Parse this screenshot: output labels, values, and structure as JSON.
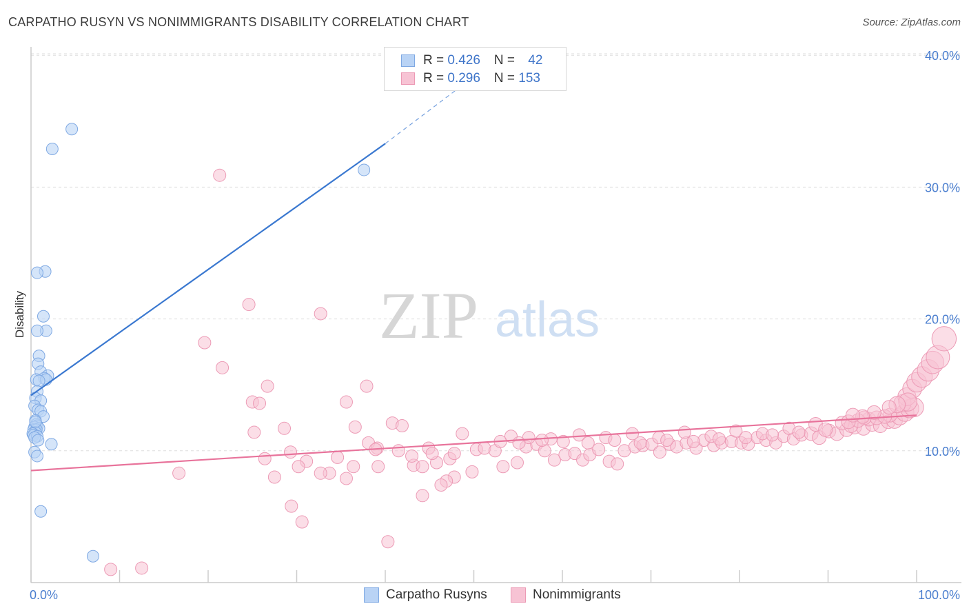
{
  "title": "CARPATHO RUSYN VS NONIMMIGRANTS DISABILITY CORRELATION CHART",
  "source": "Source: ZipAtlas.com",
  "watermark": {
    "zip": "ZIP",
    "atlas": "atlas"
  },
  "legend": {
    "rows": [
      {
        "r_label": "R = ",
        "r_value": "0.426",
        "n_label": "N = ",
        "n_value": "42"
      },
      {
        "r_label": "R = ",
        "r_value": "0.296",
        "n_label": "N = ",
        "n_value": "153"
      }
    ]
  },
  "bottom_legend": [
    "Carpatho Rusyns",
    "Nonimmigrants"
  ],
  "colors": {
    "blue_fill": "#b9d3f5",
    "blue_stroke": "#7fa9e3",
    "blue_line": "#3a78d0",
    "pink_fill": "#f7c3d4",
    "pink_stroke": "#ec9ab5",
    "pink_line": "#e8739b",
    "axis_text": "#4a7ecf",
    "grid": "#dddddd"
  },
  "chart_data": {
    "type": "scatter",
    "title": "CARPATHO RUSYN VS NONIMMIGRANTS DISABILITY CORRELATION CHART",
    "xlabel": "",
    "ylabel": "Disability",
    "xlim": [
      0,
      100
    ],
    "ylim": [
      0,
      40.5
    ],
    "x_ticks": [
      "0.0%",
      "100.0%"
    ],
    "y_ticks": [
      {
        "value": 10,
        "label": "10.0%"
      },
      {
        "value": 20,
        "label": "20.0%"
      },
      {
        "value": 30,
        "label": "30.0%"
      },
      {
        "value": 40,
        "label": "40.0%"
      }
    ],
    "grid": true,
    "legend_position": "top-center",
    "series": [
      {
        "name": "Carpatho Rusyns",
        "color": "#b9d3f5",
        "R": 0.426,
        "N": 42,
        "trend": {
          "x": [
            0,
            40
          ],
          "y": [
            14.2,
            33.3
          ],
          "dashed_to": [
            52,
            39.4
          ]
        },
        "points": [
          [
            4.6,
            34.4
          ],
          [
            2.4,
            32.9
          ],
          [
            37.6,
            31.3
          ],
          [
            1.6,
            23.6
          ],
          [
            0.7,
            23.5
          ],
          [
            1.4,
            20.2
          ],
          [
            1.7,
            19.1
          ],
          [
            0.7,
            19.1
          ],
          [
            0.9,
            17.2
          ],
          [
            0.8,
            16.6
          ],
          [
            1.1,
            16.0
          ],
          [
            1.9,
            15.7
          ],
          [
            1.5,
            15.5
          ],
          [
            0.6,
            15.4
          ],
          [
            1.7,
            15.4
          ],
          [
            0.9,
            15.3
          ],
          [
            0.7,
            14.5
          ],
          [
            0.5,
            14.0
          ],
          [
            1.1,
            13.8
          ],
          [
            0.4,
            13.4
          ],
          [
            0.8,
            13.1
          ],
          [
            1.1,
            13.0
          ],
          [
            1.4,
            12.6
          ],
          [
            0.5,
            12.3
          ],
          [
            0.6,
            12.0
          ],
          [
            0.7,
            11.9
          ],
          [
            0.4,
            11.8
          ],
          [
            0.9,
            11.7
          ],
          [
            0.3,
            11.6
          ],
          [
            0.6,
            11.6
          ],
          [
            0.5,
            11.4
          ],
          [
            0.2,
            11.3
          ],
          [
            0.3,
            11.2
          ],
          [
            0.7,
            11.1
          ],
          [
            0.4,
            11.0
          ],
          [
            0.8,
            10.8
          ],
          [
            2.3,
            10.5
          ],
          [
            0.4,
            9.9
          ],
          [
            0.7,
            9.6
          ],
          [
            1.1,
            5.4
          ],
          [
            7.0,
            2.0
          ],
          [
            0.5,
            12.2
          ]
        ]
      },
      {
        "name": "Nonimmigrants",
        "color": "#f7c3d4",
        "R": 0.296,
        "N": 153,
        "trend": {
          "x": [
            0,
            100
          ],
          "y": [
            8.5,
            12.7
          ]
        },
        "points": [
          [
            21.3,
            30.9
          ],
          [
            24.6,
            21.1
          ],
          [
            32.7,
            20.4
          ],
          [
            19.6,
            18.2
          ],
          [
            21.6,
            16.3
          ],
          [
            26.7,
            14.9
          ],
          [
            37.9,
            14.9
          ],
          [
            25.0,
            13.7
          ],
          [
            25.8,
            13.6
          ],
          [
            35.6,
            13.7
          ],
          [
            40.8,
            12.1
          ],
          [
            41.9,
            11.9
          ],
          [
            28.6,
            11.7
          ],
          [
            36.6,
            11.8
          ],
          [
            25.2,
            11.4
          ],
          [
            48.7,
            11.3
          ],
          [
            38.1,
            10.6
          ],
          [
            39.1,
            10.2
          ],
          [
            41.5,
            10.0
          ],
          [
            44.9,
            10.2
          ],
          [
            29.3,
            9.9
          ],
          [
            31.1,
            9.2
          ],
          [
            26.4,
            9.4
          ],
          [
            34.6,
            9.5
          ],
          [
            33.7,
            8.3
          ],
          [
            32.7,
            8.3
          ],
          [
            30.2,
            8.8
          ],
          [
            36.4,
            8.8
          ],
          [
            39.2,
            8.8
          ],
          [
            43.2,
            8.9
          ],
          [
            44.2,
            8.8
          ],
          [
            45.8,
            9.1
          ],
          [
            47.3,
            9.4
          ],
          [
            49.8,
            8.4
          ],
          [
            47.8,
            8.0
          ],
          [
            46.9,
            7.7
          ],
          [
            46.3,
            7.4
          ],
          [
            44.2,
            6.6
          ],
          [
            35.6,
            7.9
          ],
          [
            27.5,
            8.0
          ],
          [
            16.7,
            8.3
          ],
          [
            29.4,
            5.8
          ],
          [
            30.6,
            4.6
          ],
          [
            40.3,
            3.1
          ],
          [
            9.0,
            1.0
          ],
          [
            12.5,
            1.1
          ],
          [
            38.9,
            10.1
          ],
          [
            43.0,
            9.6
          ],
          [
            45.3,
            9.8
          ],
          [
            47.8,
            9.8
          ],
          [
            50.3,
            10.1
          ],
          [
            51.2,
            10.2
          ],
          [
            52.4,
            10.0
          ],
          [
            53.3,
            8.8
          ],
          [
            54.9,
            9.1
          ],
          [
            55.9,
            10.3
          ],
          [
            57.1,
            10.5
          ],
          [
            58.0,
            10.0
          ],
          [
            59.1,
            9.3
          ],
          [
            60.3,
            9.7
          ],
          [
            61.4,
            9.8
          ],
          [
            62.3,
            9.3
          ],
          [
            63.1,
            9.7
          ],
          [
            64.1,
            10.1
          ],
          [
            65.3,
            9.2
          ],
          [
            66.2,
            9.0
          ],
          [
            67.0,
            10.0
          ],
          [
            68.2,
            10.3
          ],
          [
            69.1,
            10.4
          ],
          [
            70.1,
            10.5
          ],
          [
            71.0,
            9.9
          ],
          [
            72.1,
            10.5
          ],
          [
            72.9,
            10.3
          ],
          [
            74.0,
            10.6
          ],
          [
            75.1,
            10.2
          ],
          [
            76.0,
            10.8
          ],
          [
            77.1,
            10.4
          ],
          [
            78.0,
            10.6
          ],
          [
            79.1,
            10.7
          ],
          [
            80.2,
            10.6
          ],
          [
            81.0,
            10.5
          ],
          [
            82.0,
            11.0
          ],
          [
            83.0,
            10.8
          ],
          [
            84.1,
            10.6
          ],
          [
            85.0,
            11.1
          ],
          [
            86.1,
            10.9
          ],
          [
            87.0,
            11.2
          ],
          [
            88.1,
            11.3
          ],
          [
            89.0,
            11.0
          ],
          [
            90.1,
            11.5
          ],
          [
            91.0,
            11.3
          ],
          [
            92.1,
            11.6
          ],
          [
            93.0,
            11.8
          ],
          [
            94.0,
            11.7
          ],
          [
            95.0,
            12.0
          ],
          [
            95.9,
            11.9
          ],
          [
            96.8,
            12.2
          ],
          [
            97.5,
            12.3
          ],
          [
            98.1,
            12.6
          ],
          [
            98.7,
            12.9
          ],
          [
            99.2,
            13.2
          ],
          [
            99.7,
            13.3
          ],
          [
            54.2,
            11.1
          ],
          [
            56.2,
            11.0
          ],
          [
            58.7,
            10.9
          ],
          [
            61.9,
            11.2
          ],
          [
            64.9,
            11.0
          ],
          [
            67.9,
            11.3
          ],
          [
            70.9,
            11.0
          ],
          [
            73.8,
            11.4
          ],
          [
            76.8,
            11.1
          ],
          [
            79.6,
            11.5
          ],
          [
            82.6,
            11.3
          ],
          [
            85.6,
            11.7
          ],
          [
            88.6,
            12.0
          ],
          [
            91.6,
            12.1
          ],
          [
            94.6,
            12.4
          ],
          [
            97.0,
            12.7
          ],
          [
            53.0,
            10.7
          ],
          [
            55.1,
            10.6
          ],
          [
            57.7,
            10.8
          ],
          [
            60.1,
            10.7
          ],
          [
            62.9,
            10.6
          ],
          [
            65.9,
            10.8
          ],
          [
            68.8,
            10.6
          ],
          [
            71.8,
            10.8
          ],
          [
            74.8,
            10.7
          ],
          [
            77.7,
            10.9
          ],
          [
            80.7,
            11.0
          ],
          [
            83.7,
            11.2
          ],
          [
            86.7,
            11.4
          ],
          [
            89.7,
            11.6
          ],
          [
            92.6,
            11.9
          ],
          [
            95.5,
            12.5
          ],
          [
            96.4,
            12.6
          ],
          [
            98.4,
            13.6
          ],
          [
            98.9,
            14.1
          ],
          [
            99.5,
            14.7
          ],
          [
            100.0,
            15.2
          ],
          [
            100.6,
            15.6
          ],
          [
            101.3,
            16.1
          ],
          [
            101.8,
            16.7
          ],
          [
            102.4,
            17.1
          ],
          [
            103.1,
            18.5
          ],
          [
            94.1,
            12.5
          ],
          [
            93.4,
            12.3
          ],
          [
            92.3,
            12.2
          ],
          [
            99.0,
            13.7
          ],
          [
            97.8,
            13.5
          ],
          [
            96.9,
            13.3
          ],
          [
            95.2,
            12.9
          ],
          [
            93.9,
            12.6
          ],
          [
            92.8,
            12.7
          ]
        ]
      }
    ]
  }
}
